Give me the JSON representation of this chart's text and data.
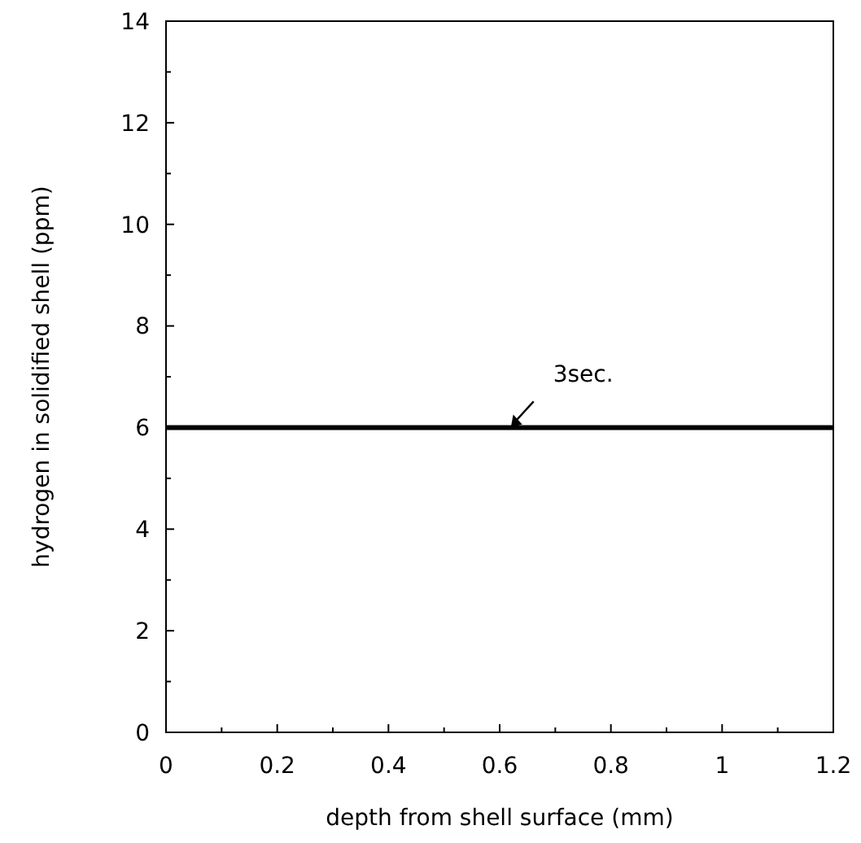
{
  "chart_data": {
    "type": "line",
    "xlabel": "depth from shell surface (mm)",
    "ylabel": "hydrogen in solidified shell (ppm)",
    "x": [
      0,
      1.2
    ],
    "series": [
      {
        "color": "#000000",
        "values": [
          6,
          6
        ]
      }
    ],
    "xlim": [
      0,
      1.2
    ],
    "ylim": [
      0,
      14
    ],
    "xticks": [
      0,
      {
        "value": 0.1,
        "label": null
      },
      0.2,
      {
        "value": 0.3,
        "label": null
      },
      0.4,
      {
        "value": 0.5,
        "label": null
      },
      0.6,
      {
        "value": 0.7,
        "label": null
      },
      0.8,
      {
        "value": 0.9,
        "label": null
      },
      1,
      {
        "value": 1.1,
        "label": null
      },
      1.2
    ],
    "yticks": [
      0,
      {
        "value": 1,
        "label": null
      },
      2,
      {
        "value": 3,
        "label": null
      },
      4,
      {
        "value": 5,
        "label": null
      },
      6,
      {
        "value": 7,
        "label": null
      },
      8,
      {
        "value": 9,
        "label": null
      },
      10,
      {
        "value": 11,
        "label": null
      },
      12,
      {
        "value": 13,
        "label": null
      },
      14
    ],
    "annotations": [
      {
        "text": "3sec.",
        "x": 0.62,
        "y": 6
      }
    ],
    "grid": false,
    "marker": "none",
    "line_style": "solid"
  }
}
